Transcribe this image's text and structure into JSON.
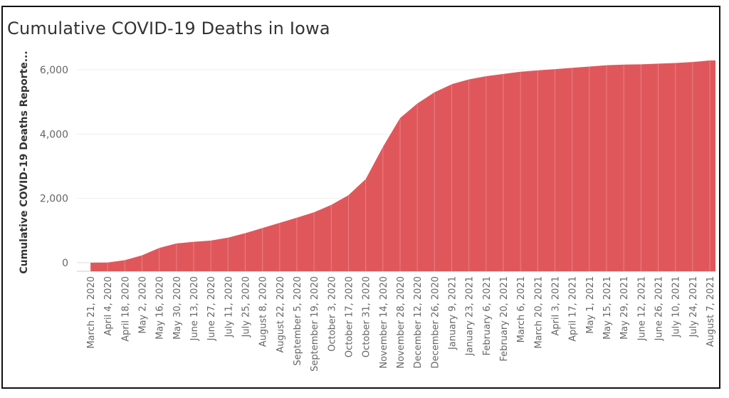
{
  "chart_data": {
    "type": "area",
    "title": "Cumulative COVID-19 Deaths in Iowa",
    "ylabel": "Cumulative COVID-19 Deaths Reporte...",
    "xlabel": "",
    "ylim": [
      0,
      6500
    ],
    "yticks": [
      0,
      2000,
      4000,
      6000
    ],
    "ytick_labels": [
      "0",
      "2,000",
      "4,000",
      "6,000"
    ],
    "grid": true,
    "fill_color": "#E0575B",
    "x": [
      "March 21, 2020",
      "April 4, 2020",
      "April 18, 2020",
      "May 2, 2020",
      "May 16, 2020",
      "May 30, 2020",
      "June 13, 2020",
      "June 27, 2020",
      "July 11, 2020",
      "July 25, 2020",
      "August 8, 2020",
      "August 22, 2020",
      "September 5, 2020",
      "September 19, 2020",
      "October 3, 2020",
      "October 17, 2020",
      "October 31, 2020",
      "November 14, 2020",
      "November 28, 2020",
      "December 12, 2020",
      "December 26, 2020",
      "January 9, 2021",
      "January 23, 2021",
      "February 6, 2021",
      "February 20, 2021",
      "March 6, 2021",
      "March 20, 2021",
      "April 3, 2021",
      "April 17, 2021",
      "May 1, 2021",
      "May 15, 2021",
      "May 29, 2021",
      "June 12, 2021",
      "June 26, 2021",
      "July 10, 2021",
      "July 24, 2021",
      "August 7, 2021"
    ],
    "series": [
      {
        "values": [
          0,
          5,
          80,
          230,
          460,
          600,
          650,
          690,
          780,
          920,
          1080,
          1240,
          1400,
          1570,
          1800,
          2100,
          2600,
          3600,
          4500,
          4950,
          5300,
          5550,
          5700,
          5800,
          5870,
          5940,
          5980,
          6020,
          6060,
          6100,
          6140,
          6160,
          6170,
          6190,
          6210,
          6240,
          6290
        ]
      }
    ]
  }
}
